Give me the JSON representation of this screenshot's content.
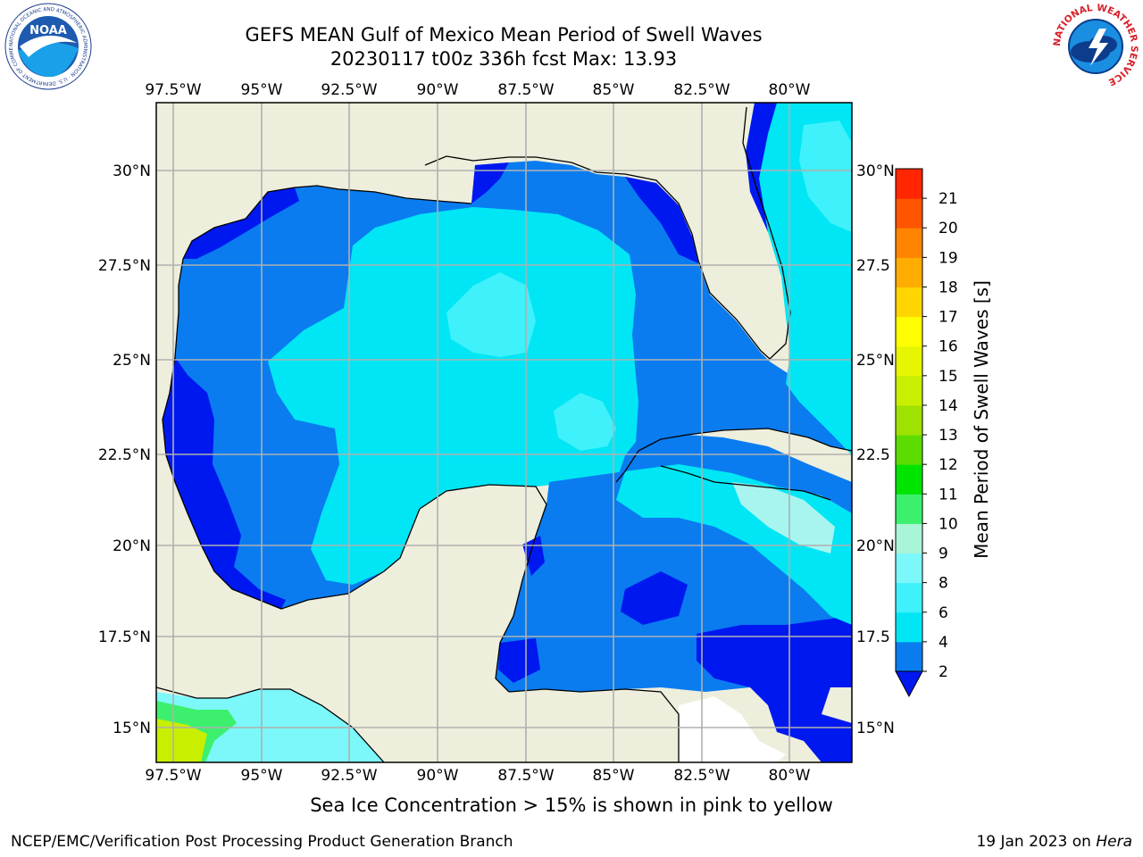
{
  "title": "GEFS MEAN Gulf of Mexico Mean Period of Swell Waves",
  "subtitle": "20230117 t00z 336h fcst   Max: 13.93",
  "note": "Sea Ice Concentration > 15% is shown in pink to yellow",
  "footer": {
    "left": "NCEP/EMC/Verification Post Processing Product Generation Branch",
    "right_date": "19 Jan 2023 on ",
    "right_host": "Hera"
  },
  "logos": {
    "noaa": "NOAA",
    "noaa_ring": "NATIONAL OCEANIC AND ATMOSPHERIC ADMINISTRATION · U.S. DEPARTMENT OF COMMERCE",
    "nws_ring": "NATIONAL WEATHER SERVICE"
  },
  "axes": {
    "lon_labels": [
      "97.5°W",
      "95°W",
      "92.5°W",
      "90°W",
      "87.5°W",
      "85°W",
      "82.5°W",
      "80°W"
    ],
    "lat_labels_left": [
      "30°N",
      "27.5°N",
      "25°N",
      "22.5°N",
      "20°N",
      "17.5°N",
      "15°N"
    ],
    "lat_labels_right": [
      "30°N",
      "27.5",
      "25°N",
      "22.5",
      "20°N",
      "17.5",
      "15°N"
    ],
    "lon_values": [
      -97.5,
      -95,
      -92.5,
      -90,
      -87.5,
      -85,
      -82.5,
      -80
    ],
    "lat_values": [
      30,
      27.5,
      25,
      22.5,
      20,
      17.5,
      15
    ],
    "lon_range": [
      -98,
      -78.3
    ],
    "lat_range": [
      14,
      31.5
    ],
    "grid": true
  },
  "colorbar": {
    "label": "Mean Period of Swell Waves [s]",
    "ticks": [
      "21",
      "20",
      "19",
      "18",
      "17",
      "16",
      "15",
      "14",
      "13",
      "12",
      "11",
      "10",
      "9",
      "8",
      "6",
      "4",
      "2"
    ],
    "levels": [
      2,
      4,
      6,
      8,
      9,
      10,
      11,
      12,
      13,
      14,
      15,
      16,
      17,
      18,
      19,
      20,
      21
    ],
    "colors": [
      "#0a7cf0",
      "#00e6f5",
      "#3ff1fb",
      "#7cf8fb",
      "#a8f5d8",
      "#3cf06e",
      "#00e400",
      "#5cdc00",
      "#9fe100",
      "#c8ee00",
      "#e8f500",
      "#ffff00",
      "#ffd500",
      "#ffad00",
      "#ff8500",
      "#ff5500",
      "#ff2600"
    ],
    "under_color": "#0018f0",
    "extend": "min"
  },
  "colors": {
    "land": "#eeeedc",
    "grid": "#b0b0b0",
    "swell_2_4": "#0a7cf0",
    "swell_under_2": "#0018f0",
    "swell_4_6": "#00e6f5",
    "swell_6_8": "#3ff1fb",
    "swell_8_9": "#a8f5f0",
    "pacific_high": "#c8ee00",
    "pacific_mid": "#3cf06e"
  }
}
